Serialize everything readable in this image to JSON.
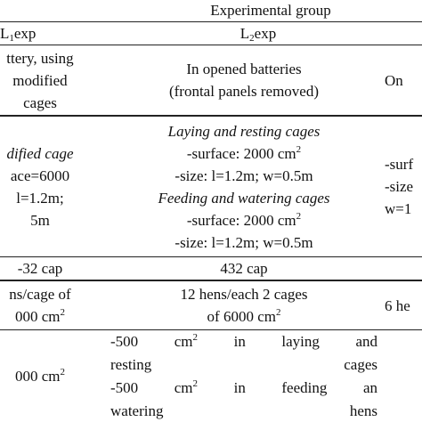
{
  "header": {
    "group": "Experimental group",
    "columns": [
      [
        [
          "L",
          {
            "sub": "1"
          },
          "exp"
        ]
      ],
      [
        [
          "L",
          {
            "sub": "2"
          },
          "exp"
        ]
      ]
    ]
  },
  "rows": [
    {
      "cells": [
        [
          [
            "ttery, using"
          ],
          [
            "modified"
          ],
          [
            "cages"
          ]
        ],
        [
          [
            "In opened batteries"
          ],
          [
            "(frontal panels removed)"
          ]
        ],
        [
          [
            "On"
          ]
        ]
      ]
    },
    {
      "cells": [
        [
          [
            {
              "i": "dified cage"
            }
          ],
          [
            "ace=6000"
          ],
          [
            "l=1.2m;"
          ],
          [
            "5m"
          ]
        ],
        [
          [
            {
              "i": "Laying and resting cages"
            }
          ],
          [
            "-surface: 2000 cm",
            {
              "sup": "2"
            }
          ],
          [
            "-size: l=1.2m; w=0.5m"
          ],
          [
            {
              "i": "Feeding and watering cages"
            }
          ],
          [
            "-surface: 2000 cm",
            {
              "sup": "2"
            }
          ],
          [
            "-size: l=1.2m; w=0.5m"
          ]
        ],
        [
          [
            "-surf"
          ],
          [
            "-size"
          ],
          [
            "w=1"
          ]
        ]
      ]
    },
    {
      "cells": [
        [
          [
            "-32 cap"
          ]
        ],
        [
          [
            "432 cap"
          ]
        ]
      ]
    },
    {
      "cells": [
        [
          [
            "ns/cage of"
          ],
          [
            "000 cm",
            {
              "sup": "2"
            }
          ]
        ],
        [
          [
            "12 hens/each 2 cages"
          ],
          [
            "of 6000 cm",
            {
              "sup": "2"
            }
          ]
        ],
        [
          [
            "6 he"
          ]
        ]
      ]
    },
    {
      "cells": [
        [
          [
            "000 cm",
            {
              "sup": "2"
            }
          ]
        ],
        [
          [
            "-500 cm",
            {
              "sup": "2"
            },
            " in laying and"
          ],
          [
            "resting cages"
          ],
          [
            "-500 cm",
            {
              "sup": "2"
            },
            " in feeding an"
          ],
          [
            "watering hens"
          ]
        ]
      ]
    }
  ]
}
